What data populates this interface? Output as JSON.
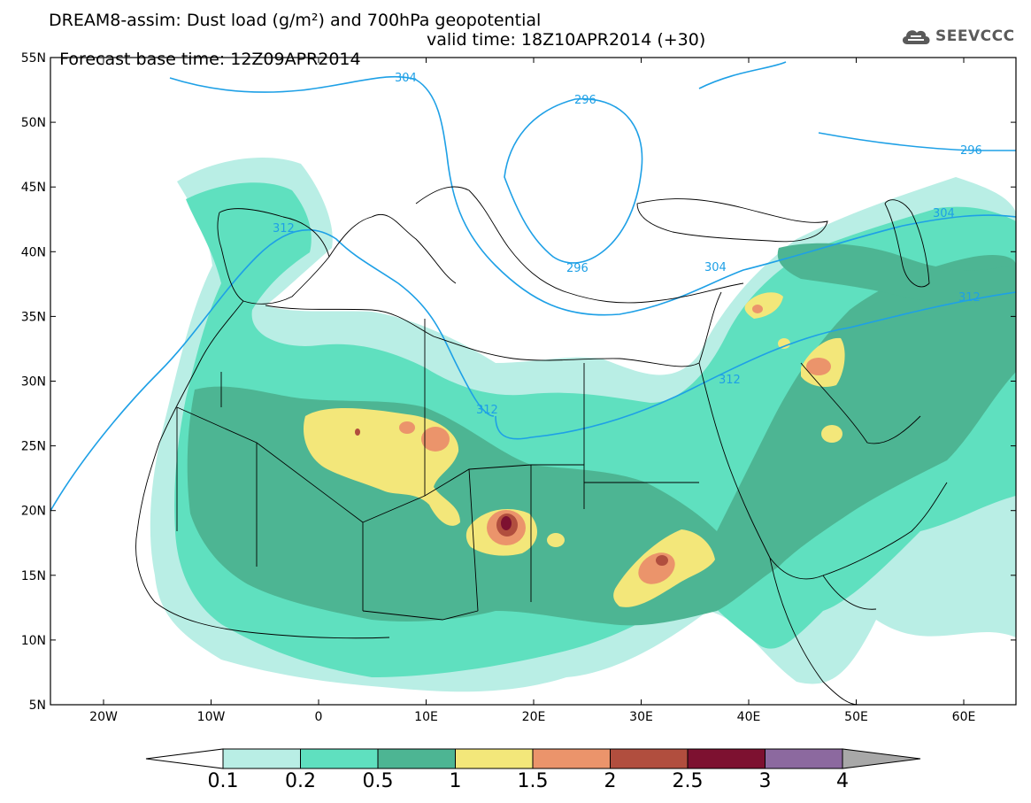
{
  "title": {
    "line1": "DREAM8-assim: Dust load (g/m²) and 700hPa geopotential",
    "line2_base": "Forecast base time: 12Z09APR2014",
    "line2_valid": "valid time: 18Z10APR2014 (+30)"
  },
  "logo": {
    "text": "SEEVCCC",
    "icon": "cloud-icon"
  },
  "map": {
    "lat_labels": [
      "55N",
      "50N",
      "45N",
      "40N",
      "35N",
      "30N",
      "25N",
      "20N",
      "15N",
      "10N",
      "5N"
    ],
    "lon_labels": [
      "20W",
      "10W",
      "0",
      "10E",
      "20E",
      "30E",
      "40E",
      "50E",
      "60E"
    ],
    "contours": [
      {
        "label": "304"
      },
      {
        "label": "296"
      },
      {
        "label": "296"
      },
      {
        "label": "296"
      },
      {
        "label": "312"
      },
      {
        "label": "304"
      },
      {
        "label": "304"
      },
      {
        "label": "312"
      },
      {
        "label": "312"
      },
      {
        "label": "312"
      }
    ]
  },
  "colorbar": {
    "labels": [
      "0.1",
      "0.2",
      "0.5",
      "1",
      "1.5",
      "2",
      "2.5",
      "3",
      "4"
    ],
    "colors": [
      "#ffffff",
      "#b9eee5",
      "#5fe0bf",
      "#4db593",
      "#f3e77a",
      "#eb946b",
      "#b14e3e",
      "#7d1130",
      "#8c699f",
      "#a8a8a8"
    ]
  },
  "styles": {
    "contour_color": "#1ea0e6",
    "sea_color": "#ffffff",
    "border_color": "#000000"
  }
}
